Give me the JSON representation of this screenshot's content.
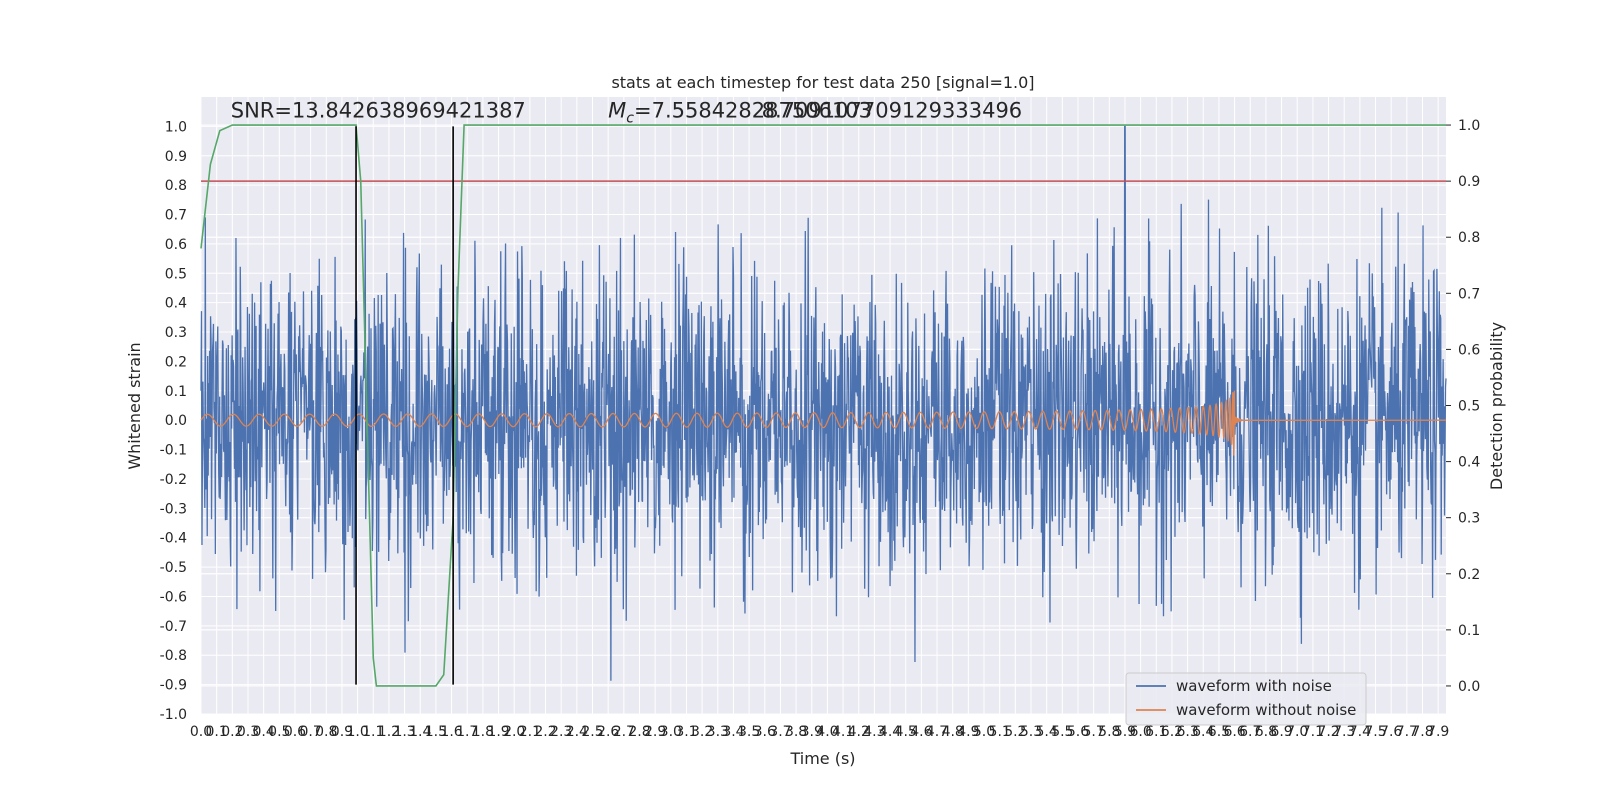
{
  "chart_data": {
    "type": "line",
    "title": "stats at each timestep for test data 250 [signal=1.0]",
    "xlabel": "Time (s)",
    "ylabel": "Whitened strain",
    "y2label": "Detection probability",
    "xlim": [
      0.0,
      7.95
    ],
    "ylim": [
      -1.0,
      1.1
    ],
    "y2lim": [
      -0.05,
      1.05
    ],
    "x_ticks": [
      "0.0",
      "0.1",
      "0.2",
      "0.3",
      "0.4",
      "0.5",
      "0.6",
      "0.7",
      "0.8",
      "0.9",
      "1.0",
      "1.1",
      "1.2",
      "1.3",
      "1.4",
      "1.5",
      "1.6",
      "1.7",
      "1.8",
      "1.9",
      "2.0",
      "2.1",
      "2.2",
      "2.3",
      "2.4",
      "2.5",
      "2.6",
      "2.7",
      "2.8",
      "2.9",
      "3.0",
      "3.1",
      "3.2",
      "3.3",
      "3.4",
      "3.5",
      "3.6",
      "3.7",
      "3.8",
      "3.9",
      "4.0",
      "4.1",
      "4.2",
      "4.3",
      "4.4",
      "4.5",
      "4.6",
      "4.7",
      "4.8",
      "4.9",
      "5.0",
      "5.1",
      "5.2",
      "5.3",
      "5.4",
      "5.5",
      "5.6",
      "5.7",
      "5.8",
      "5.9",
      "6.0",
      "6.1",
      "6.2",
      "6.3",
      "6.4",
      "6.5",
      "6.6",
      "6.7",
      "6.8",
      "6.9",
      "7.0",
      "7.1",
      "7.2",
      "7.3",
      "7.4",
      "7.5",
      "7.6",
      "7.7",
      "7.8",
      "7.9"
    ],
    "y_ticks": [
      "-1.0",
      "-0.9",
      "-0.8",
      "-0.7",
      "-0.6",
      "-0.5",
      "-0.4",
      "-0.3",
      "-0.2",
      "-0.1",
      "0.0",
      "0.1",
      "0.2",
      "0.3",
      "0.4",
      "0.5",
      "0.6",
      "0.7",
      "0.8",
      "0.9",
      "1.0"
    ],
    "y2_ticks": [
      "0.0",
      "0.1",
      "0.2",
      "0.3",
      "0.4",
      "0.5",
      "0.6",
      "0.7",
      "0.8",
      "0.9",
      "1.0"
    ],
    "grid": true,
    "legend_position": "bottom-right",
    "annotations": [
      {
        "text": "SNR=13.842638969421387",
        "x": 0.19,
        "y": 1.03
      },
      {
        "text_prefix": "M",
        "text_sub": "c",
        "text_rest": "=7.558428287506103",
        "x": 2.6,
        "y": 1.03
      },
      {
        "text": "8.709107709129333496",
        "x": 3.58,
        "y": 1.03
      }
    ],
    "vertical_lines": [
      {
        "x": 0.99,
        "color": "#000000",
        "y_from": -0.9,
        "y_to": 1.0
      },
      {
        "x": 1.61,
        "color": "#000000",
        "y_from": -0.9,
        "y_to": 1.0
      }
    ],
    "threshold": {
      "y2": 0.9,
      "color": "#c44e52"
    },
    "series": [
      {
        "name": "waveform with noise",
        "color": "#4c72b0",
        "axis": "left",
        "noise_envelope": 0.46,
        "peak": [
          5.9,
          1.0
        ],
        "x_range": [
          0.0,
          7.95
        ]
      },
      {
        "name": "waveform without noise",
        "color": "#dd8452",
        "axis": "left",
        "chirp": {
          "start_amp": 0.02,
          "merger_x": 6.6,
          "merger_amp_pos": 0.44,
          "merger_amp_neg": -0.31
        }
      },
      {
        "name": "",
        "color": "#55a868",
        "axis": "right",
        "x": [
          0.0,
          0.06,
          0.12,
          0.2,
          0.35,
          0.6,
          0.99,
          1.02,
          1.1,
          1.12,
          1.3,
          1.5,
          1.55,
          1.61,
          1.64,
          1.68,
          2.5,
          4.0,
          6.0,
          7.95
        ],
        "y": [
          0.78,
          0.93,
          0.99,
          1.0,
          1.0,
          1.0,
          1.0,
          0.9,
          0.05,
          0.0,
          0.0,
          0.0,
          0.02,
          0.3,
          0.7,
          1.0,
          1.0,
          1.0,
          1.0,
          1.0
        ]
      }
    ],
    "legend": [
      {
        "label": "waveform with noise",
        "color": "#4c72b0"
      },
      {
        "label": "waveform without noise",
        "color": "#dd8452"
      }
    ],
    "colors": {
      "plot_bg": "#eaeaf2",
      "grid": "#ffffff"
    }
  }
}
